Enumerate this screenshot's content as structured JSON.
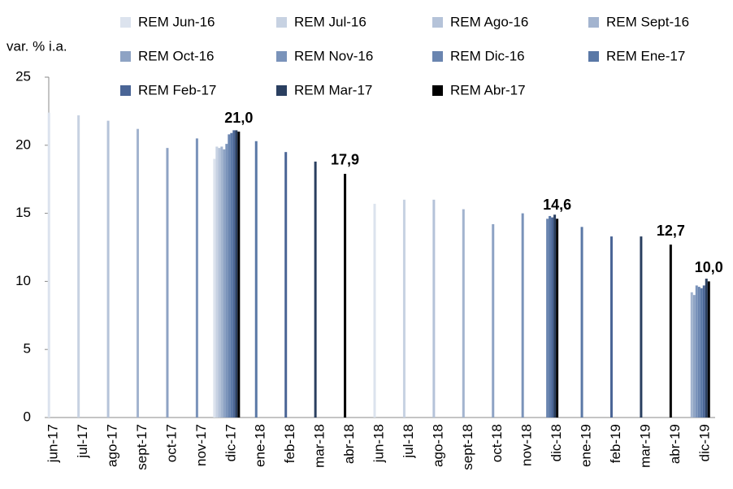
{
  "chart_data": {
    "type": "bar",
    "y_label": "var. % i.a.",
    "categories": [
      "jun-17",
      "jul-17",
      "ago-17",
      "sept-17",
      "oct-17",
      "nov-17",
      "dic-17",
      "ene-18",
      "feb-18",
      "mar-18",
      "abr-18",
      "jun-18",
      "jul-18",
      "ago-18",
      "sept-18",
      "oct-18",
      "nov-18",
      "dic-18",
      "ene-19",
      "feb-19",
      "mar-19",
      "abr-19",
      "dic-19"
    ],
    "ylim": [
      0,
      25
    ],
    "yticks": [
      0,
      5,
      10,
      15,
      20,
      25
    ],
    "series": [
      {
        "name": "REM Jun-16",
        "color": "#dce3ee",
        "values": [
          22.4,
          null,
          null,
          null,
          null,
          null,
          19.0,
          null,
          null,
          null,
          null,
          15.7,
          null,
          null,
          null,
          null,
          null,
          null,
          null,
          null,
          null,
          null,
          null
        ]
      },
      {
        "name": "REM Jul-16",
        "color": "#c7d2e2",
        "values": [
          null,
          22.2,
          null,
          null,
          null,
          null,
          19.9,
          null,
          null,
          null,
          null,
          null,
          16.0,
          null,
          null,
          null,
          null,
          null,
          null,
          null,
          null,
          null,
          null
        ]
      },
      {
        "name": "REM Ago-16",
        "color": "#b5c3d9",
        "values": [
          null,
          null,
          21.8,
          null,
          null,
          null,
          19.8,
          null,
          null,
          null,
          null,
          null,
          null,
          16.0,
          null,
          null,
          null,
          null,
          null,
          null,
          null,
          null,
          null
        ]
      },
      {
        "name": "REM Sept-16",
        "color": "#a3b4cf",
        "values": [
          null,
          null,
          null,
          21.2,
          null,
          null,
          19.9,
          null,
          null,
          null,
          null,
          null,
          null,
          null,
          15.3,
          null,
          null,
          null,
          null,
          null,
          null,
          null,
          9.2
        ]
      },
      {
        "name": "REM Oct-16",
        "color": "#8ea3c4",
        "values": [
          null,
          null,
          null,
          null,
          19.8,
          null,
          19.7,
          null,
          null,
          null,
          null,
          null,
          null,
          null,
          null,
          14.2,
          null,
          null,
          null,
          null,
          null,
          null,
          9.0
        ]
      },
      {
        "name": "REM Nov-16",
        "color": "#7a93ba",
        "values": [
          null,
          null,
          null,
          null,
          null,
          20.5,
          20.1,
          null,
          null,
          null,
          null,
          null,
          null,
          null,
          null,
          null,
          15.0,
          null,
          null,
          null,
          null,
          null,
          9.7
        ]
      },
      {
        "name": "REM Dic-16",
        "color": "#6a85b0",
        "values": [
          null,
          null,
          null,
          null,
          null,
          null,
          20.8,
          null,
          null,
          null,
          null,
          null,
          null,
          null,
          null,
          null,
          null,
          14.6,
          null,
          null,
          null,
          null,
          9.6
        ]
      },
      {
        "name": "REM Ene-17",
        "color": "#5a78a6",
        "values": [
          null,
          null,
          null,
          null,
          null,
          null,
          20.9,
          20.3,
          null,
          null,
          null,
          null,
          null,
          null,
          null,
          null,
          null,
          14.8,
          14.0,
          null,
          null,
          null,
          9.5
        ]
      },
      {
        "name": "REM Feb-17",
        "color": "#4a6596",
        "values": [
          null,
          null,
          null,
          null,
          null,
          null,
          21.1,
          null,
          19.5,
          null,
          null,
          null,
          null,
          null,
          null,
          null,
          null,
          14.7,
          null,
          13.3,
          null,
          null,
          9.7
        ]
      },
      {
        "name": "REM Mar-17",
        "color": "#2a3f60",
        "values": [
          null,
          null,
          null,
          null,
          null,
          null,
          21.1,
          null,
          null,
          18.8,
          null,
          null,
          null,
          null,
          null,
          null,
          null,
          14.9,
          null,
          null,
          13.3,
          null,
          10.2
        ]
      },
      {
        "name": "REM Abr-17",
        "color": "#000000",
        "values": [
          null,
          null,
          null,
          null,
          null,
          null,
          21.0,
          null,
          null,
          null,
          17.9,
          null,
          null,
          null,
          null,
          null,
          null,
          14.6,
          null,
          null,
          null,
          12.7,
          10.0
        ],
        "value_labels": [
          null,
          null,
          null,
          null,
          null,
          null,
          "21,0",
          null,
          null,
          null,
          "17,9",
          null,
          null,
          null,
          null,
          null,
          null,
          "14,6",
          null,
          null,
          null,
          "12,7",
          "10,0"
        ]
      }
    ]
  }
}
